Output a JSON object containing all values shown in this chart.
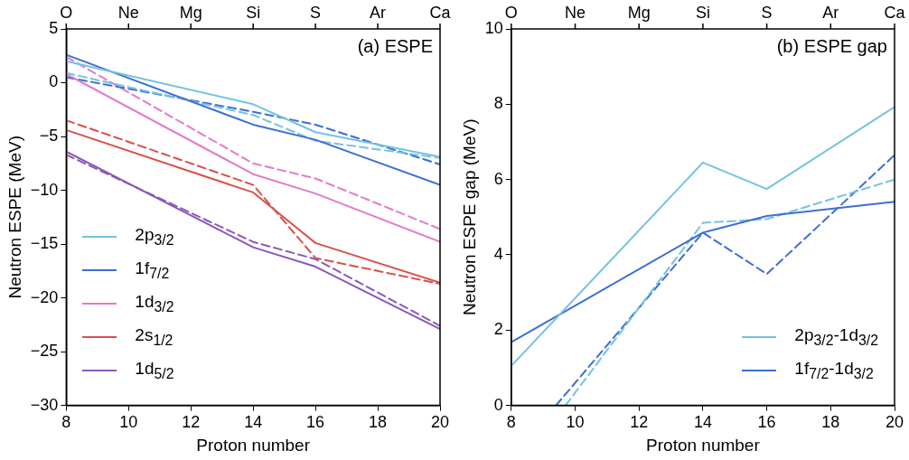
{
  "chart_data": [
    {
      "type": "line",
      "title": null,
      "annotations": [
        "(a) ESPE",
        "O",
        "Ne",
        "Mg",
        "Si",
        "S",
        "Ar",
        "Ca"
      ],
      "xlabel": "Proton number",
      "ylabel": "Neutron ESPE (MeV)",
      "x": [
        8,
        14,
        16,
        20
      ],
      "xlim": [
        8,
        20
      ],
      "xticks": [
        8,
        10,
        12,
        14,
        16,
        18,
        20
      ],
      "ylim": [
        -30,
        5
      ],
      "yticks": [
        -30,
        -25,
        -20,
        -15,
        -10,
        -5,
        0,
        5
      ],
      "grid": false,
      "legend": "bottom left",
      "marker": "none",
      "series": [
        {
          "name": "2p$_{3/2}$",
          "color": "#74c2e1",
          "line_style": "solid",
          "values": [
            2.0,
            -2.0,
            -4.6,
            -6.9
          ]
        },
        {
          "name": "1f$_{7/2}$",
          "color": "#3b6fd4",
          "line_style": "solid",
          "values": [
            2.6,
            -3.9,
            -5.3,
            -9.5
          ]
        },
        {
          "name": "1d$_{3/2}$",
          "color": "#e27bc9",
          "line_style": "solid",
          "values": [
            0.8,
            -8.5,
            -10.3,
            -14.8
          ]
        },
        {
          "name": "2s$_{1/2}$",
          "color": "#dc4f4a",
          "line_style": "solid",
          "values": [
            -4.4,
            -10.2,
            -14.9,
            -18.6
          ]
        },
        {
          "name": "1d$_{5/2}$",
          "color": "#8b58b8",
          "line_style": "solid",
          "values": [
            -6.4,
            -15.3,
            -17.1,
            -22.9
          ]
        },
        {
          "color": "#74c2e1",
          "line_style": "dashed",
          "values": [
            0.9,
            -3.0,
            -5.4,
            -7.0
          ]
        },
        {
          "color": "#3b6fd4",
          "line_style": "dashed",
          "values": [
            0.5,
            -2.7,
            -3.9,
            -7.6
          ]
        },
        {
          "color": "#e27bc9",
          "line_style": "dashed",
          "values": [
            2.4,
            -7.5,
            -8.9,
            -13.6
          ]
        },
        {
          "color": "#dc4f4a",
          "line_style": "dashed",
          "values": [
            -3.5,
            -9.5,
            -16.3,
            -18.7
          ]
        },
        {
          "color": "#8b58b8",
          "line_style": "dashed",
          "values": [
            -6.7,
            -14.8,
            -16.4,
            -22.6
          ]
        }
      ]
    },
    {
      "type": "line",
      "title": null,
      "annotations": [
        "(b) ESPE gap",
        "O",
        "Ne",
        "Mg",
        "Si",
        "S",
        "Ar",
        "Ca"
      ],
      "xlabel": "Proton number",
      "ylabel": "Neutron ESPE gap (MeV)",
      "x": [
        8,
        14,
        16,
        20
      ],
      "xlim": [
        8,
        20
      ],
      "xticks": [
        8,
        10,
        12,
        14,
        16,
        18,
        20
      ],
      "ylim": [
        0,
        10
      ],
      "yticks": [
        0,
        2,
        4,
        6,
        8,
        10
      ],
      "grid": false,
      "legend": "bottom right",
      "marker": "none",
      "series": [
        {
          "name": "2p$_{3/2}$-1d$_{3/2}$",
          "color": "#74c2e1",
          "line_style": "solid",
          "values": [
            1.05,
            6.45,
            5.75,
            7.93
          ]
        },
        {
          "name": "1f$_{7/2}$-1d$_{3/2}$",
          "color": "#3b6fd4",
          "line_style": "solid",
          "values": [
            1.68,
            4.59,
            5.03,
            5.41
          ]
        },
        {
          "color": "#74c2e1",
          "line_style": "dashed",
          "x": [
            9.7,
            14,
            16,
            20
          ],
          "values": [
            0,
            4.85,
            4.95,
            6.0
          ]
        },
        {
          "color": "#3b6fd4",
          "line_style": "dashed",
          "x": [
            9.4,
            14,
            16,
            20
          ],
          "values": [
            0,
            4.59,
            3.49,
            6.65
          ]
        }
      ]
    }
  ]
}
